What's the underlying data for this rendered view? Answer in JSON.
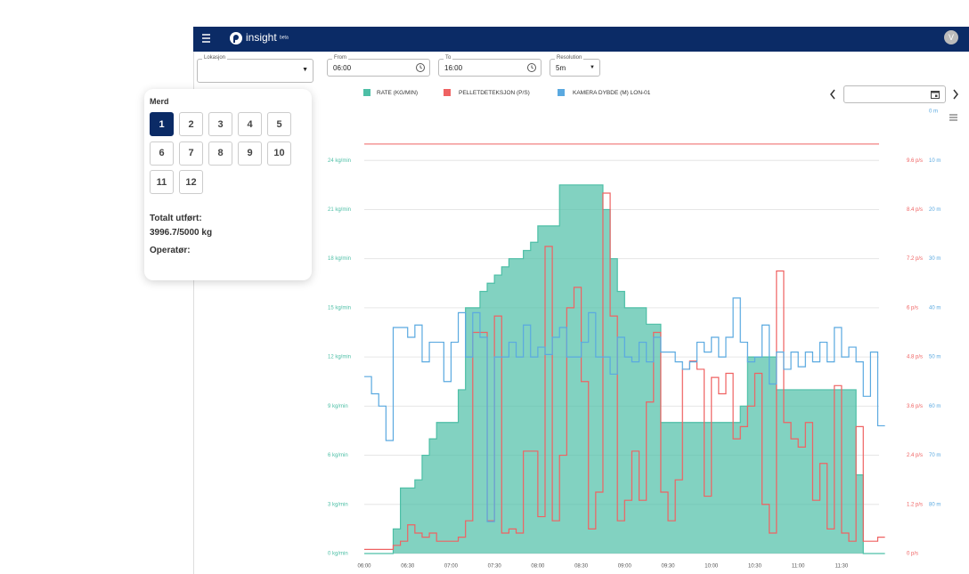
{
  "header": {
    "logo": "insight",
    "badge": "beta",
    "avatar": "V"
  },
  "filters": [
    {
      "label": "Lokasjon"
    },
    {
      "label": "From",
      "value": "06:00"
    },
    {
      "label": "To",
      "value": "16:00"
    },
    {
      "label": "Resolution",
      "value": "5m"
    }
  ],
  "sidebar": {
    "title": "Merd",
    "pens": [
      "1",
      "2",
      "3",
      "4",
      "5",
      "6",
      "7",
      "8",
      "9",
      "10",
      "11",
      "12"
    ],
    "selected_index": 0,
    "total_label": "Totalt utført:",
    "total_value": "3996.7/5000 kg",
    "operator_label": "Operatør:"
  },
  "chart_data": {
    "type": "step",
    "x": [
      "06:00",
      null,
      null,
      null,
      null,
      null,
      "06:30",
      null,
      null,
      null,
      null,
      null,
      "07:00",
      null,
      null,
      null,
      null,
      null,
      "07:30",
      null,
      null,
      null,
      null,
      null,
      "08:00",
      null,
      null,
      null,
      null,
      null,
      "08:30",
      null,
      null,
      null,
      null,
      null,
      "09:00",
      null,
      null,
      null,
      null,
      null,
      "09:30",
      null,
      null,
      null,
      null,
      null,
      "10:00",
      null,
      null,
      null,
      null,
      null,
      "10:30",
      null,
      null,
      null,
      null,
      null,
      "11:00",
      null,
      null,
      null,
      null,
      null,
      "11:30",
      null,
      null,
      null,
      null,
      null
    ],
    "series": [
      {
        "name": "RATE (KG/MIN)",
        "color": "#4dbfa6",
        "axis": "y",
        "fill": true,
        "values": [
          0,
          0,
          0,
          0,
          1.5,
          4,
          4,
          4.5,
          6,
          7,
          8,
          8,
          8,
          10,
          15,
          15,
          16,
          16.5,
          17,
          17.5,
          18,
          18,
          18.5,
          19,
          20,
          20,
          20,
          22.5,
          22.5,
          22.5,
          22.5,
          22.5,
          22.5,
          21,
          18,
          16,
          15,
          15,
          15,
          14,
          14,
          8,
          8,
          8,
          8,
          8,
          8,
          8,
          8,
          8,
          8,
          8,
          9,
          12,
          12,
          12,
          12,
          10,
          10,
          10,
          10,
          10,
          10,
          10,
          10,
          10,
          10,
          10,
          4.8,
          0,
          0,
          0
        ]
      },
      {
        "name": "PELLETDETEKSJON (P/S)",
        "color": "#ef6262",
        "axis": "y2",
        "values": [
          0.1,
          0.1,
          0.1,
          0.1,
          0.2,
          0.3,
          0.7,
          0.5,
          0.4,
          0.5,
          0.3,
          0.3,
          0.3,
          0.4,
          0.8,
          5.4,
          5.4,
          0.8,
          5.8,
          0.5,
          0.6,
          0.5,
          2.5,
          2.5,
          0.9,
          7.5,
          0.8,
          2.4,
          6,
          6.5,
          4.2,
          0.6,
          1.5,
          8.8,
          5.8,
          0.8,
          1.3,
          2.5,
          1.3,
          3.7,
          5.4,
          1.5,
          0.8,
          1.8,
          4.5,
          4.7,
          4.5,
          1.4,
          4.3,
          3.9,
          4.4,
          2.8,
          3.1,
          3.6,
          4.4,
          1.2,
          0.5,
          6.9,
          3.2,
          2.8,
          2.6,
          3.2,
          1.3,
          2.2,
          0.6,
          4.1,
          0.5,
          0.3,
          3.1,
          0.3,
          0.3,
          0.4
        ]
      },
      {
        "name": "KAMERA DYBDE (M) LON-01",
        "color": "#5aa9e0",
        "axis": "y3",
        "values": [
          54,
          57.5,
          60,
          67,
          44,
          44,
          46,
          43.5,
          51,
          47,
          47,
          55,
          47,
          41,
          50,
          41,
          46,
          83.5,
          50,
          50,
          47,
          50,
          43.5,
          50,
          48,
          49.5,
          46,
          44,
          50,
          50,
          47,
          41,
          50,
          50,
          53.5,
          46,
          50,
          51,
          47,
          51,
          46,
          49,
          49,
          51,
          52.5,
          51,
          47,
          49,
          46,
          50,
          46,
          38,
          47,
          51,
          50,
          43.5,
          55.5,
          49,
          52.5,
          49,
          52,
          49,
          51,
          47,
          51,
          44,
          50,
          48,
          51,
          58,
          49,
          64
        ]
      }
    ],
    "ylim": [
      0,
      27
    ],
    "yticks": [
      {
        "value": 0,
        "label": "0 kg/min"
      },
      {
        "value": 3,
        "label": "3 kg/min"
      },
      {
        "value": 6,
        "label": "6 kg/min"
      },
      {
        "value": 9,
        "label": "9 kg/min"
      },
      {
        "value": 12,
        "label": "12 kg/min"
      },
      {
        "value": 15,
        "label": "15 kg/min"
      },
      {
        "value": 18,
        "label": "18 kg/min"
      },
      {
        "value": 21,
        "label": "21 kg/min"
      },
      {
        "value": 24,
        "label": "24 kg/min"
      }
    ],
    "y2lim": [
      0,
      10.8
    ],
    "y2ticks": [
      {
        "value": 0,
        "label": "0 p/s"
      },
      {
        "value": 1.2,
        "label": "1.2 p/s"
      },
      {
        "value": 2.4,
        "label": "2.4 p/s"
      },
      {
        "value": 3.6,
        "label": "3.6 p/s"
      },
      {
        "value": 4.8,
        "label": "4.8 p/s"
      },
      {
        "value": 6,
        "label": "6 p/s"
      },
      {
        "value": 7.2,
        "label": "7.2 p/s"
      },
      {
        "value": 8.4,
        "label": "8.4 p/s"
      },
      {
        "value": 9.6,
        "label": "9.6 p/s"
      }
    ],
    "y3lim": [
      90,
      0
    ],
    "y3ticks": [
      {
        "value": 0,
        "label": "0 m"
      },
      {
        "value": 10,
        "label": "10 m"
      },
      {
        "value": 20,
        "label": "20 m"
      },
      {
        "value": 30,
        "label": "30 m"
      },
      {
        "value": 40,
        "label": "40 m"
      },
      {
        "value": 50,
        "label": "50 m"
      },
      {
        "value": 60,
        "label": "60 m"
      },
      {
        "value": 70,
        "label": "70 m"
      },
      {
        "value": 80,
        "label": "80 m"
      }
    ],
    "reference_lines": [
      {
        "value": 10,
        "axis": "y2",
        "color": "#ef6262"
      }
    ],
    "grid": true
  }
}
